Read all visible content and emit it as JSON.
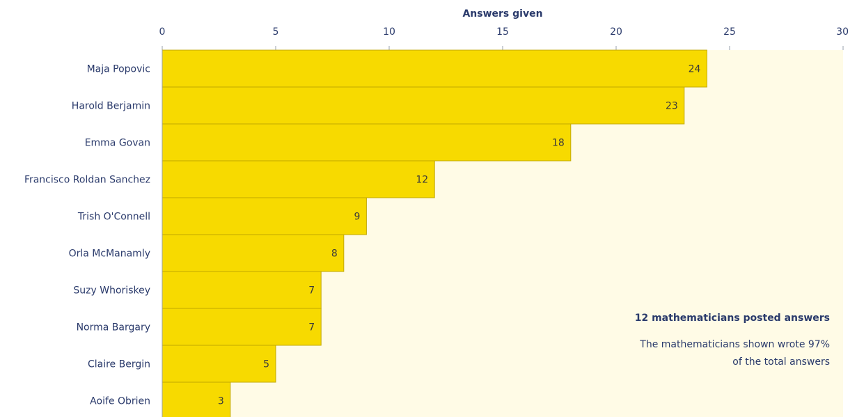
{
  "chart_data": {
    "type": "bar",
    "orientation": "horizontal",
    "xlabel": "Answers given",
    "xlim": [
      0,
      30
    ],
    "xticks": [
      0,
      5,
      10,
      15,
      20,
      25,
      30
    ],
    "categories": [
      "Maja Popovic",
      "Harold Berjamin",
      "Emma Govan",
      "Francisco Roldan Sanchez",
      "Trish O'Connell",
      "Orla McManamly",
      "Suzy Whoriskey",
      "Norma Bargary",
      "Claire Bergin",
      "Aoife Obrien"
    ],
    "values": [
      24,
      23,
      18,
      12,
      9,
      8,
      7,
      7,
      5,
      3
    ],
    "colors": {
      "bar": "#f7da00",
      "bar_stroke": "#c2a800",
      "plot_bg": "#fffbe6",
      "text": "#2a3a6b"
    },
    "annotations": [
      {
        "text": "12 mathematicians posted answers",
        "bold": true
      },
      {
        "text": "The mathematicians shown wrote 97%",
        "bold": false
      },
      {
        "text": "of the total answers",
        "bold": false
      }
    ]
  }
}
